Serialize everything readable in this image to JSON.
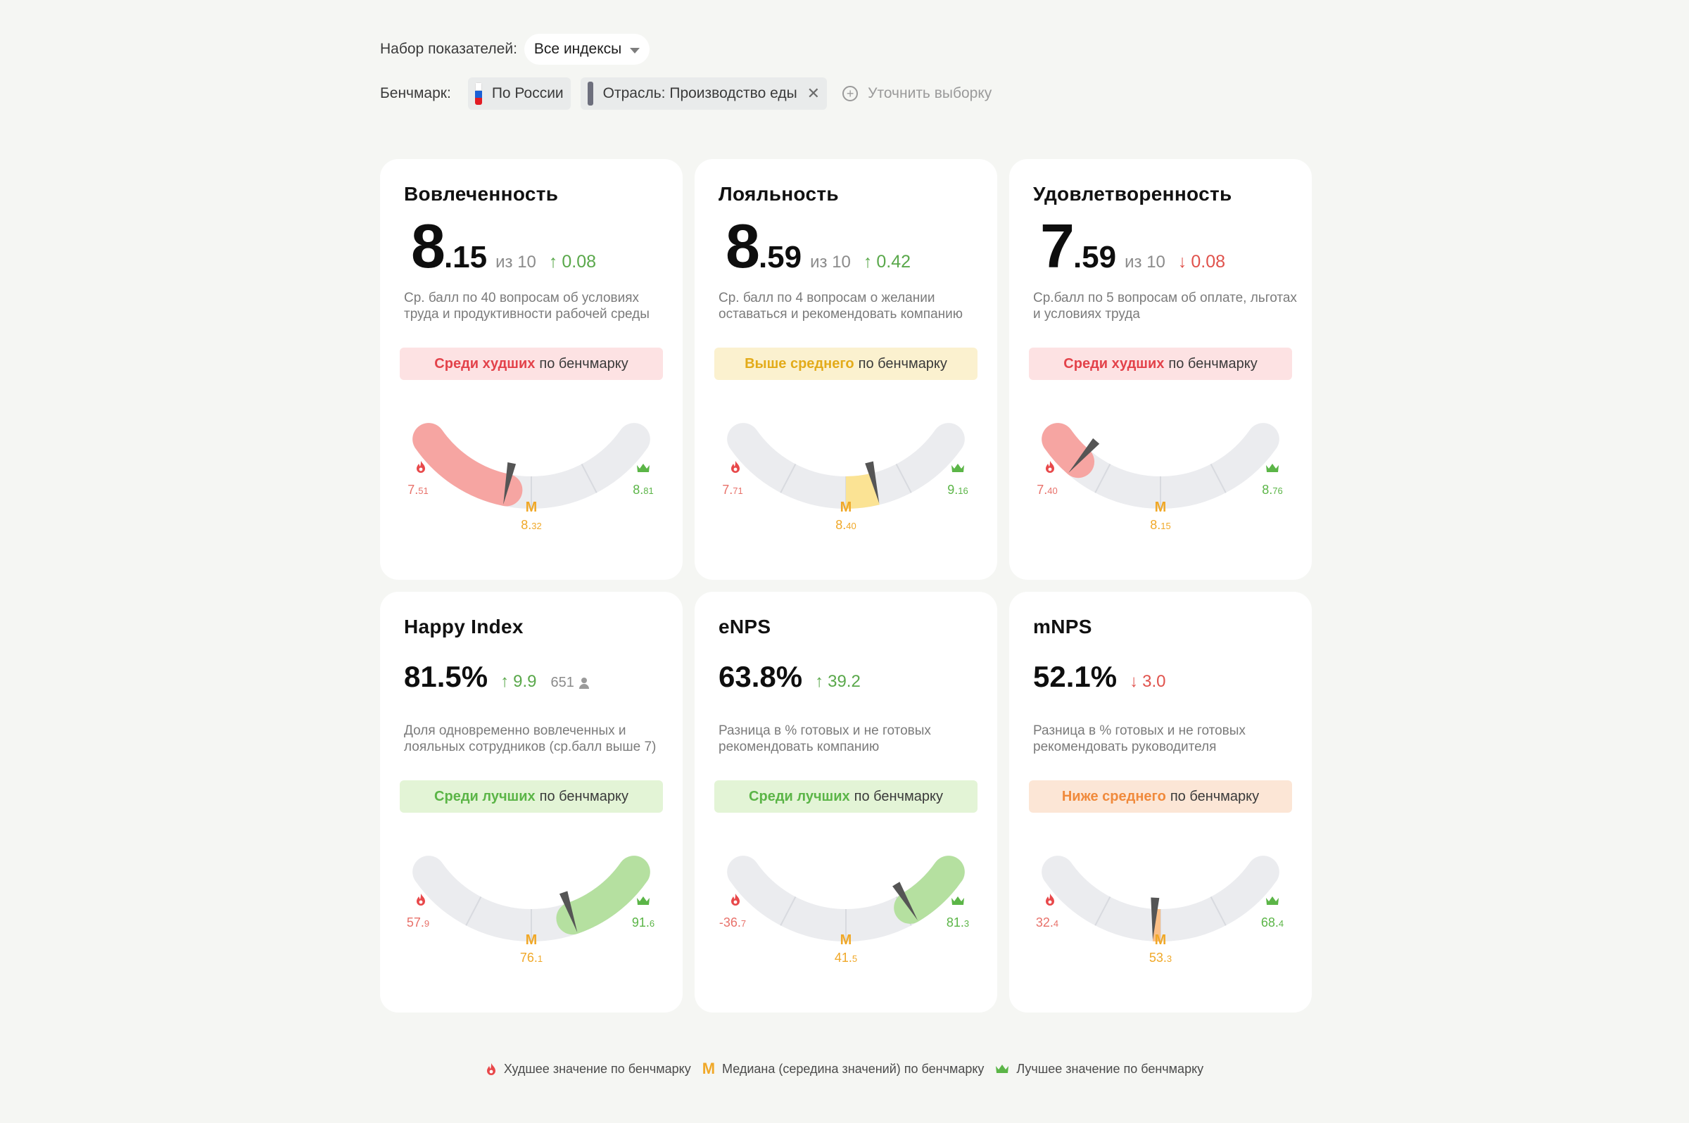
{
  "filters": {
    "set_label": "Набор показателей:",
    "set_value": "Все индексы",
    "benchmark_label": "Бенчмарк:",
    "benchmark_chips": [
      {
        "label": "По России"
      },
      {
        "label": "Отрасль: Производство еды",
        "removable": true
      }
    ],
    "refine_label": "Уточнить выборку"
  },
  "cards": [
    {
      "title": "Вовлеченность",
      "int": "8",
      "dec": ".15",
      "of": "из 10",
      "delta": "0.08",
      "dir": "up",
      "desc": "Ср. балл по 40 вопросам об условиях труда и продуктивности рабочей среды",
      "status_bold": "Среди худших",
      "status_rest": "по бенчмарку",
      "status_type": "bad",
      "worst_main": "7.",
      "worst_sub": "51",
      "median_main": "8.",
      "median_sub": "32",
      "best_main": "8.",
      "best_sub": "81",
      "value": 8.15,
      "worst": 7.51,
      "median": 8.32,
      "best": 8.81
    },
    {
      "title": "Лояльность",
      "int": "8",
      "dec": ".59",
      "of": "из 10",
      "delta": "0.42",
      "dir": "up",
      "desc": "Ср. балл по 4 вопросам о желании оставаться и рекомендовать компанию",
      "status_bold": "Выше среднего",
      "status_rest": "по бенчмарку",
      "status_type": "above",
      "worst_main": "7.",
      "worst_sub": "71",
      "median_main": "8.",
      "median_sub": "40",
      "best_main": "9.",
      "best_sub": "16",
      "value": 8.59,
      "worst": 7.71,
      "median": 8.4,
      "best": 9.16
    },
    {
      "title": "Удовлетворенность",
      "int": "7",
      "dec": ".59",
      "of": "из 10",
      "delta": "0.08",
      "dir": "down",
      "desc": "Ср.балл по 5 вопросам об оплате, льготах и условиях труда",
      "status_bold": "Среди худших",
      "status_rest": "по бенчмарку",
      "status_type": "bad",
      "worst_main": "7.",
      "worst_sub": "40",
      "median_main": "8.",
      "median_sub": "15",
      "best_main": "8.",
      "best_sub": "76",
      "value": 7.59,
      "worst": 7.4,
      "median": 8.15,
      "best": 8.76
    },
    {
      "title": "Happy Index",
      "pct": "81.5%",
      "delta": "9.9",
      "dir": "up",
      "people": "651",
      "desc": "Доля одновременно вовлеченных и лояльных сотрудников (ср.балл выше 7)",
      "status_bold": "Среди лучших",
      "status_rest": "по бенчмарку",
      "status_type": "good",
      "worst_main": "57.",
      "worst_sub": "9",
      "median_main": "76.",
      "median_sub": "1",
      "best_main": "91.",
      "best_sub": "6",
      "value": 81.5,
      "worst": 57.9,
      "median": 76.1,
      "best": 91.6
    },
    {
      "title": "eNPS",
      "pct": "63.8%",
      "delta": "39.2",
      "dir": "up",
      "desc": "Разница в % готовых и не готовых рекомендовать компанию",
      "status_bold": "Среди лучших",
      "status_rest": "по бенчмарку",
      "status_type": "good",
      "worst_main": "-36.",
      "worst_sub": "7",
      "median_main": "41.",
      "median_sub": "5",
      "best_main": "81.",
      "best_sub": "3",
      "value": 63.8,
      "worst": -36.7,
      "median": 41.5,
      "best": 81.3
    },
    {
      "title": "mNPS",
      "pct": "52.1%",
      "delta": "3.0",
      "dir": "down",
      "desc": "Разница в % готовых и не готовых рекомендовать руководителя",
      "status_bold": "Ниже среднего",
      "status_rest": "по бенчмарку",
      "status_type": "below",
      "worst_main": "32.",
      "worst_sub": "4",
      "median_main": "53.",
      "median_sub": "3",
      "best_main": "68.",
      "best_sub": "4",
      "value": 52.1,
      "worst": 32.4,
      "median": 53.3,
      "best": 68.4
    }
  ],
  "legend": {
    "worst": "Худшее значение по бенчмарку",
    "median_mark": "М",
    "median": "Медиана (середина значений) по бенчмарку",
    "best": "Лучшее значение по бенчмарку"
  },
  "colors": {
    "bad": "#f6a5a2",
    "above": "#fbe394",
    "good": "#b5e0a0",
    "below": "#fbbf86",
    "track": "#ebecef",
    "needle": "#555555"
  }
}
